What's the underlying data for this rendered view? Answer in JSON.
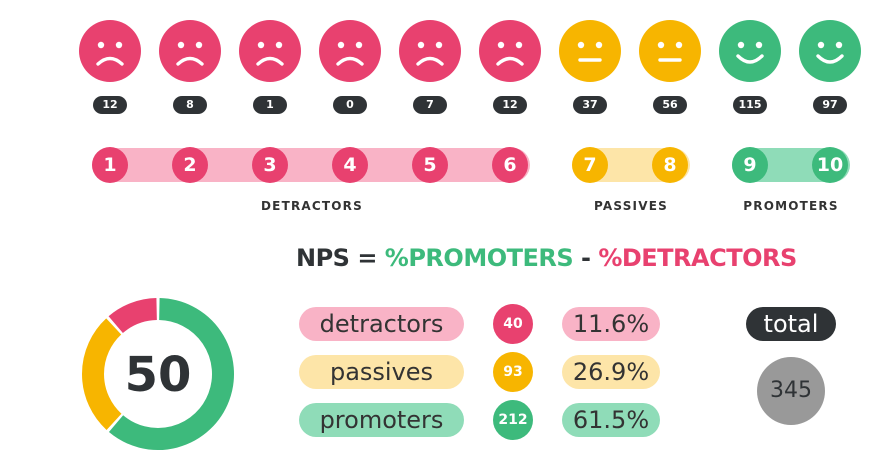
{
  "colors": {
    "detractor": "#e8416f",
    "passive": "#f7b500",
    "promoter": "#3dba7c",
    "detractor_light": "#f9b3c6",
    "passive_light": "#fde5a8",
    "promoter_light": "#8fdcb8",
    "dark": "#2f3336",
    "grey": "#999999"
  },
  "chart_data": {
    "type": "nps",
    "scores": [
      {
        "score": "1",
        "count": "12",
        "face": "sad"
      },
      {
        "score": "2",
        "count": "8",
        "face": "sad"
      },
      {
        "score": "3",
        "count": "1",
        "face": "sad"
      },
      {
        "score": "4",
        "count": "0",
        "face": "sad"
      },
      {
        "score": "5",
        "count": "7",
        "face": "sad"
      },
      {
        "score": "6",
        "count": "12",
        "face": "sad"
      },
      {
        "score": "7",
        "count": "37",
        "face": "neutral"
      },
      {
        "score": "8",
        "count": "56",
        "face": "neutral"
      },
      {
        "score": "9",
        "count": "115",
        "face": "happy"
      },
      {
        "score": "10",
        "count": "97",
        "face": "happy"
      }
    ],
    "groups": {
      "detractors": "DETRACTORS",
      "passives": "PASSIVES",
      "promoters": "PROMOTERS"
    },
    "formula": {
      "nps": "NPS",
      "eq": " = ",
      "promoters": "%PROMOTERS",
      "minus": " - ",
      "detractors": "%DETRACTORS"
    },
    "summary": [
      {
        "label": "detractors",
        "count": 40,
        "percent": "11.6%",
        "value": 11.6
      },
      {
        "label": "passives",
        "count": 93,
        "percent": "26.9%",
        "value": 26.9
      },
      {
        "label": "promoters",
        "count": 212,
        "percent": "61.5%",
        "value": 61.5
      }
    ],
    "nps_score": "50",
    "total_label": "total",
    "total": "345"
  }
}
